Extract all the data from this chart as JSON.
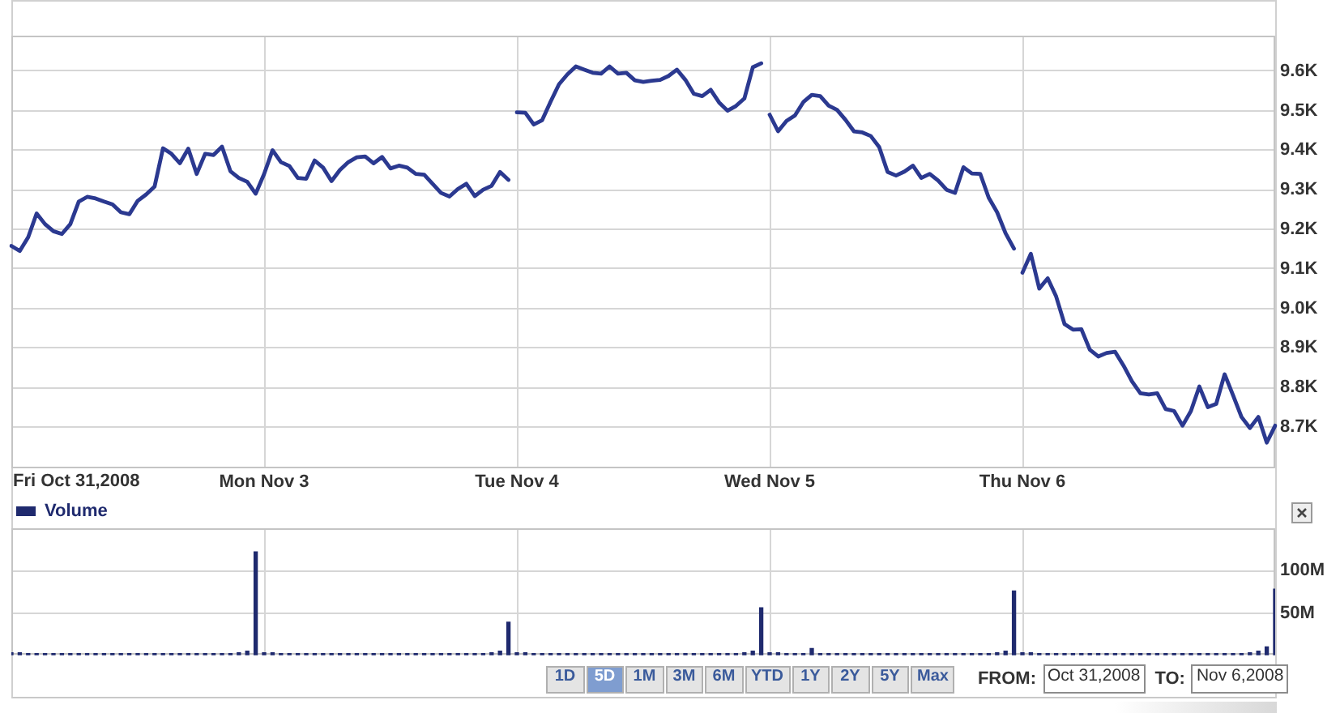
{
  "chart_data": [
    {
      "type": "line",
      "categories": [
        null,
        null,
        null,
        null,
        null,
        null,
        null,
        null,
        null,
        null,
        null,
        null,
        null,
        null,
        null,
        null,
        null,
        null,
        null,
        null,
        null,
        null,
        null,
        null,
        null,
        null,
        null,
        null,
        null,
        null,
        "Mon Nov 3",
        null,
        null,
        null,
        null,
        null,
        null,
        null,
        null,
        null,
        null,
        null,
        null,
        null,
        null,
        null,
        null,
        null,
        null,
        null,
        null,
        null,
        null,
        null,
        null,
        null,
        null,
        null,
        null,
        null,
        "Tue Nov 4",
        null,
        null,
        null,
        null,
        null,
        null,
        null,
        null,
        null,
        null,
        null,
        null,
        null,
        null,
        null,
        null,
        null,
        null,
        null,
        null,
        null,
        null,
        null,
        null,
        null,
        null,
        null,
        null,
        null,
        "Wed Nov 5",
        null,
        null,
        null,
        null,
        null,
        null,
        null,
        null,
        null,
        null,
        null,
        null,
        null,
        null,
        null,
        null,
        null,
        null,
        null,
        null,
        null,
        null,
        null,
        null,
        null,
        null,
        null,
        null,
        null,
        "Thu Nov 6",
        null,
        null,
        null,
        null,
        null,
        null,
        null,
        null,
        null,
        null,
        null,
        null,
        null,
        null,
        null,
        null,
        null,
        null,
        null,
        null,
        null,
        null,
        null,
        null,
        null,
        null,
        null,
        null,
        null,
        null
      ],
      "series": [
        {
          "color": "#2b3990",
          "values": [
            9158,
            9145,
            9180,
            9240,
            9213,
            9195,
            9188,
            9213,
            9270,
            9282,
            9278,
            9270,
            9263,
            9243,
            9238,
            9272,
            9288,
            9308,
            9405,
            9391,
            9367,
            9404,
            9340,
            9391,
            9388,
            9409,
            9347,
            9330,
            9320,
            9290,
            9340,
            9400,
            9370,
            9360,
            9330,
            9328,
            9374,
            9356,
            9322,
            9350,
            9370,
            9382,
            9384,
            9367,
            9383,
            9354,
            9361,
            9356,
            9340,
            9338,
            9315,
            9292,
            9283,
            9302,
            9315,
            9284,
            9300,
            9310,
            9345,
            9325,
            null,
            null,
            null,
            null,
            null,
            null,
            null,
            null,
            null,
            null,
            null,
            null,
            null,
            null,
            null,
            null,
            null,
            null,
            null,
            null,
            null,
            null,
            null,
            null,
            null,
            null,
            null,
            null,
            null,
            null,
            null,
            null,
            null,
            null,
            null,
            null,
            null,
            null,
            null,
            null,
            null,
            null,
            null,
            null,
            null,
            null,
            null,
            null,
            null,
            null,
            null,
            null,
            null,
            null,
            null,
            null,
            null,
            null,
            null,
            null,
            null,
            null,
            null,
            null,
            null,
            null,
            null,
            null,
            null,
            null,
            null,
            null,
            null,
            null,
            null,
            null,
            null,
            null,
            null,
            null,
            null,
            null,
            null,
            null,
            null,
            null,
            null,
            null,
            null,
            null,
            null
          ]
        },
        {
          "color": "#2b3990",
          "values": [
            null,
            null,
            null,
            null,
            null,
            null,
            null,
            null,
            null,
            null,
            null,
            null,
            null,
            null,
            null,
            null,
            null,
            null,
            null,
            null,
            null,
            null,
            null,
            null,
            null,
            null,
            null,
            null,
            null,
            null,
            null,
            null,
            null,
            null,
            null,
            null,
            null,
            null,
            null,
            null,
            null,
            null,
            null,
            null,
            null,
            null,
            null,
            null,
            null,
            null,
            null,
            null,
            null,
            null,
            null,
            null,
            null,
            null,
            null,
            null,
            9496,
            9495,
            9465,
            9476,
            9523,
            9567,
            9592,
            9612,
            9604,
            9596,
            9594,
            9612,
            9594,
            9596,
            9577,
            9573,
            9576,
            9578,
            9588,
            9604,
            9578,
            9543,
            9537,
            9553,
            9521,
            9500,
            9512,
            9531,
            9610,
            9620,
            null,
            null,
            null,
            null,
            null,
            null,
            null,
            null,
            null,
            null,
            null,
            null,
            null,
            null,
            null,
            null,
            null,
            null,
            null,
            null,
            null,
            null,
            null,
            null,
            null,
            null,
            null,
            null,
            null,
            null,
            null,
            null,
            null,
            null,
            null,
            null,
            null,
            null,
            null,
            null,
            null,
            null,
            null,
            null,
            null,
            null,
            null,
            null,
            null,
            null,
            null,
            null,
            null,
            null,
            null,
            null,
            null,
            null,
            null,
            null,
            null
          ]
        },
        {
          "color": "#2b3990",
          "values": [
            null,
            null,
            null,
            null,
            null,
            null,
            null,
            null,
            null,
            null,
            null,
            null,
            null,
            null,
            null,
            null,
            null,
            null,
            null,
            null,
            null,
            null,
            null,
            null,
            null,
            null,
            null,
            null,
            null,
            null,
            null,
            null,
            null,
            null,
            null,
            null,
            null,
            null,
            null,
            null,
            null,
            null,
            null,
            null,
            null,
            null,
            null,
            null,
            null,
            null,
            null,
            null,
            null,
            null,
            null,
            null,
            null,
            null,
            null,
            null,
            null,
            null,
            null,
            null,
            null,
            null,
            null,
            null,
            null,
            null,
            null,
            null,
            null,
            null,
            null,
            null,
            null,
            null,
            null,
            null,
            null,
            null,
            null,
            null,
            null,
            null,
            null,
            null,
            null,
            null,
            9490,
            9448,
            9474,
            9488,
            9522,
            9540,
            9537,
            9513,
            9502,
            9477,
            9448,
            9445,
            9436,
            9408,
            9345,
            9336,
            9346,
            9361,
            9330,
            9340,
            9323,
            9300,
            9292,
            9357,
            9341,
            9340,
            9280,
            9243,
            9190,
            9151,
            null,
            null,
            null,
            null,
            null,
            null,
            null,
            null,
            null,
            null,
            null,
            null,
            null,
            null,
            null,
            null,
            null,
            null,
            null,
            null,
            null,
            null,
            null,
            null,
            null,
            null,
            null,
            null,
            null,
            null,
            null
          ]
        },
        {
          "color": "#2b3990",
          "values": [
            null,
            null,
            null,
            null,
            null,
            null,
            null,
            null,
            null,
            null,
            null,
            null,
            null,
            null,
            null,
            null,
            null,
            null,
            null,
            null,
            null,
            null,
            null,
            null,
            null,
            null,
            null,
            null,
            null,
            null,
            null,
            null,
            null,
            null,
            null,
            null,
            null,
            null,
            null,
            null,
            null,
            null,
            null,
            null,
            null,
            null,
            null,
            null,
            null,
            null,
            null,
            null,
            null,
            null,
            null,
            null,
            null,
            null,
            null,
            null,
            null,
            null,
            null,
            null,
            null,
            null,
            null,
            null,
            null,
            null,
            null,
            null,
            null,
            null,
            null,
            null,
            null,
            null,
            null,
            null,
            null,
            null,
            null,
            null,
            null,
            null,
            null,
            null,
            null,
            null,
            null,
            null,
            null,
            null,
            null,
            null,
            null,
            null,
            null,
            null,
            null,
            null,
            null,
            null,
            null,
            null,
            null,
            null,
            null,
            null,
            null,
            null,
            null,
            null,
            null,
            null,
            null,
            null,
            null,
            null,
            9090,
            9138,
            9050,
            9076,
            9030,
            8960,
            8946,
            8947,
            8895,
            8878,
            8887,
            8890,
            8855,
            8815,
            8785,
            8782,
            8785,
            8745,
            8740,
            8703,
            8740,
            8802,
            8750,
            8758,
            8833,
            8780,
            8725,
            8697,
            8725,
            8660,
            8703
          ]
        }
      ],
      "ylim": [
        8595,
        9690
      ],
      "yticks": [
        {
          "value": 8700,
          "label": "8.7K"
        },
        {
          "value": 8800,
          "label": "8.8K"
        },
        {
          "value": 8900,
          "label": "8.9K"
        },
        {
          "value": 9000,
          "label": "9.0K"
        },
        {
          "value": 9100,
          "label": "9.1K"
        },
        {
          "value": 9200,
          "label": "9.2K"
        },
        {
          "value": 9300,
          "label": "9.3K"
        },
        {
          "value": 9400,
          "label": "9.4K"
        },
        {
          "value": 9500,
          "label": "9.5K"
        },
        {
          "value": 9600,
          "label": "9.6K"
        }
      ],
      "grid": true,
      "annotations": [
        "Fri Oct 31,2008"
      ]
    },
    {
      "type": "bar",
      "categories": [
        null,
        null,
        null,
        null,
        null,
        null,
        null,
        null,
        null,
        null,
        null,
        null,
        null,
        null,
        null,
        null,
        null,
        null,
        null,
        null,
        null,
        null,
        null,
        null,
        null,
        null,
        null,
        null,
        null,
        null,
        null,
        null,
        null,
        null,
        null,
        null,
        null,
        null,
        null,
        null,
        null,
        null,
        null,
        null,
        null,
        null,
        null,
        null,
        null,
        null,
        null,
        null,
        null,
        null,
        null,
        null,
        null,
        null,
        null,
        null,
        null,
        null,
        null,
        null,
        null,
        null,
        null,
        null,
        null,
        null,
        null,
        null,
        null,
        null,
        null,
        null,
        null,
        null,
        null,
        null,
        null,
        null,
        null,
        null,
        null,
        null,
        null,
        null,
        null,
        null,
        null,
        null,
        null,
        null,
        null,
        null,
        null,
        null,
        null,
        null,
        null,
        null,
        null,
        null,
        null,
        null,
        null,
        null,
        null,
        null,
        null,
        null,
        null,
        null,
        null,
        null,
        null,
        null,
        null,
        null,
        null,
        null,
        null,
        null,
        null,
        null,
        null,
        null,
        null,
        null,
        null,
        null,
        null,
        null,
        null,
        null,
        null,
        null,
        null,
        null,
        null,
        null,
        null,
        null,
        null,
        null,
        null,
        null,
        null,
        null,
        null
      ],
      "series": [
        {
          "name": "Volume",
          "color": "#1f2a6e",
          "values": [
            3000000,
            3000000,
            2000000,
            2000000,
            2000000,
            2000000,
            2000000,
            2000000,
            2000000,
            2000000,
            2000000,
            2000000,
            2000000,
            2000000,
            2000000,
            2000000,
            2000000,
            2000000,
            2000000,
            2000000,
            2000000,
            2000000,
            2000000,
            2000000,
            2000000,
            2000000,
            2000000,
            3000000,
            5000000,
            122000000,
            3000000,
            3000000,
            2000000,
            2000000,
            2000000,
            2000000,
            2000000,
            2000000,
            2000000,
            2000000,
            2000000,
            2000000,
            2000000,
            2000000,
            2000000,
            2000000,
            2000000,
            2000000,
            2000000,
            2000000,
            2000000,
            2000000,
            2000000,
            2000000,
            2000000,
            2000000,
            2000000,
            3000000,
            5000000,
            39000000,
            3000000,
            3000000,
            2000000,
            2000000,
            2000000,
            2000000,
            2000000,
            2000000,
            2000000,
            2000000,
            2000000,
            2000000,
            2000000,
            2000000,
            2000000,
            2000000,
            2000000,
            2000000,
            2000000,
            2000000,
            2000000,
            2000000,
            2000000,
            2000000,
            2000000,
            2000000,
            2000000,
            3000000,
            5000000,
            56000000,
            3000000,
            3000000,
            2000000,
            2000000,
            2000000,
            8000000,
            2000000,
            2000000,
            2000000,
            2000000,
            2000000,
            2000000,
            2000000,
            2000000,
            2000000,
            2000000,
            2000000,
            2000000,
            2000000,
            2000000,
            2000000,
            2000000,
            2000000,
            2000000,
            2000000,
            2000000,
            2000000,
            3000000,
            5000000,
            76000000,
            3000000,
            3000000,
            2000000,
            2000000,
            2000000,
            2000000,
            2000000,
            2000000,
            2000000,
            2000000,
            2000000,
            2000000,
            2000000,
            2000000,
            2000000,
            2000000,
            2000000,
            2000000,
            2000000,
            2000000,
            2000000,
            2000000,
            2000000,
            2000000,
            2000000,
            2000000,
            2000000,
            3000000,
            5000000,
            10000000,
            78000000
          ]
        }
      ],
      "ylim": [
        0,
        150000000
      ],
      "yticks": [
        {
          "value": 50000000,
          "label": "50M"
        },
        {
          "value": 100000000,
          "label": "100M"
        }
      ],
      "grid": true,
      "legend": "top left",
      "tick_labels": "y"
    },
    {
      "type": "other",
      "annotations": [
        "1D",
        "5D",
        "1M",
        "3M",
        "6M",
        "YTD",
        "1Y",
        "2Y",
        "5Y",
        "Max",
        "FROM:",
        "Oct 31,2008",
        "TO:",
        "Nov 6,2008"
      ]
    }
  ]
}
